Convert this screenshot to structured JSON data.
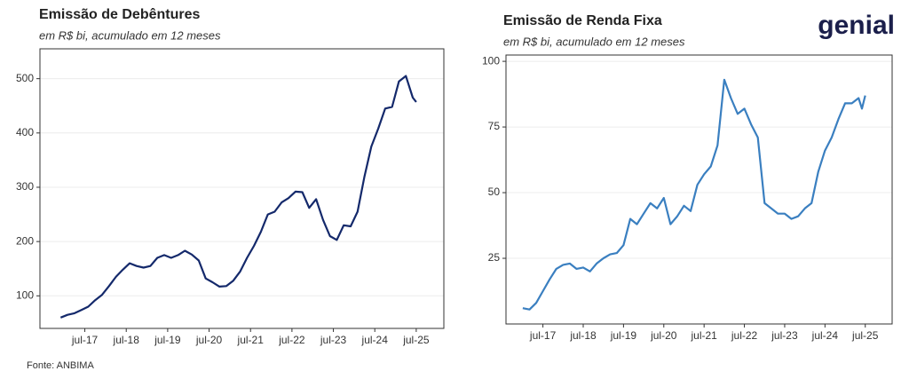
{
  "chart_data": [
    {
      "type": "line",
      "title": "Emissão de Debêntures",
      "subtitle": "em R$ bi, acumulado em 12 meses",
      "color": "#14296b",
      "grid": true,
      "xlim": [
        "2016-06",
        "2026-03"
      ],
      "ylim": [
        40,
        555
      ],
      "xticks": [
        {
          "value": "2017-07",
          "label": "jul-17"
        },
        {
          "value": "2018-07",
          "label": "jul-18"
        },
        {
          "value": "2019-07",
          "label": "jul-19"
        },
        {
          "value": "2020-07",
          "label": "jul-20"
        },
        {
          "value": "2021-07",
          "label": "jul-21"
        },
        {
          "value": "2022-07",
          "label": "jul-22"
        },
        {
          "value": "2023-07",
          "label": "jul-23"
        },
        {
          "value": "2024-07",
          "label": "jul-24"
        },
        {
          "value": "2025-07",
          "label": "jul-25"
        }
      ],
      "yticks": [
        100,
        200,
        300,
        400,
        500
      ],
      "x": [
        "2016-12",
        "2017-02",
        "2017-04",
        "2017-06",
        "2017-08",
        "2017-10",
        "2017-12",
        "2018-02",
        "2018-04",
        "2018-06",
        "2018-08",
        "2018-10",
        "2018-12",
        "2019-02",
        "2019-04",
        "2019-06",
        "2019-08",
        "2019-10",
        "2019-12",
        "2020-02",
        "2020-04",
        "2020-06",
        "2020-08",
        "2020-10",
        "2020-12",
        "2021-02",
        "2021-04",
        "2021-06",
        "2021-08",
        "2021-10",
        "2021-12",
        "2022-02",
        "2022-04",
        "2022-06",
        "2022-08",
        "2022-10",
        "2022-12",
        "2023-02",
        "2023-04",
        "2023-06",
        "2023-08",
        "2023-10",
        "2023-12",
        "2024-02",
        "2024-04",
        "2024-06",
        "2024-08",
        "2024-10",
        "2024-12",
        "2025-02",
        "2025-04",
        "2025-06",
        "2025-07"
      ],
      "values": [
        60,
        65,
        68,
        74,
        80,
        92,
        102,
        118,
        135,
        148,
        160,
        155,
        152,
        155,
        170,
        175,
        170,
        175,
        183,
        176,
        165,
        132,
        125,
        117,
        118,
        128,
        145,
        170,
        192,
        218,
        250,
        255,
        272,
        280,
        292,
        291,
        262,
        278,
        240,
        210,
        203,
        230,
        228,
        255,
        320,
        375,
        408,
        445,
        448,
        495,
        505,
        465,
        457
      ]
    },
    {
      "type": "line",
      "title": "Emissão de Renda Fixa",
      "subtitle": "em R$ bi, acumulado em 12 meses",
      "color": "#3a7fc0",
      "grid": true,
      "xlim": [
        "2016-08",
        "2026-03"
      ],
      "ylim": [
        0,
        102.4
      ],
      "xticks": [
        {
          "value": "2017-07",
          "label": "jul-17"
        },
        {
          "value": "2018-07",
          "label": "jul-18"
        },
        {
          "value": "2019-07",
          "label": "jul-19"
        },
        {
          "value": "2020-07",
          "label": "jul-20"
        },
        {
          "value": "2021-07",
          "label": "jul-21"
        },
        {
          "value": "2022-07",
          "label": "jul-22"
        },
        {
          "value": "2023-07",
          "label": "jul-23"
        },
        {
          "value": "2024-07",
          "label": "jul-24"
        },
        {
          "value": "2025-07",
          "label": "jul-25"
        }
      ],
      "yticks": [
        25,
        50,
        75,
        100
      ],
      "x": [
        "2017-01",
        "2017-03",
        "2017-05",
        "2017-07",
        "2017-09",
        "2017-11",
        "2018-01",
        "2018-03",
        "2018-05",
        "2018-07",
        "2018-09",
        "2018-11",
        "2019-01",
        "2019-03",
        "2019-05",
        "2019-07",
        "2019-09",
        "2019-11",
        "2020-01",
        "2020-03",
        "2020-05",
        "2020-07",
        "2020-09",
        "2020-11",
        "2021-01",
        "2021-03",
        "2021-05",
        "2021-07",
        "2021-09",
        "2021-11",
        "2022-01",
        "2022-03",
        "2022-05",
        "2022-07",
        "2022-09",
        "2022-11",
        "2023-01",
        "2023-03",
        "2023-05",
        "2023-07",
        "2023-09",
        "2023-11",
        "2024-01",
        "2024-03",
        "2024-05",
        "2024-07",
        "2024-09",
        "2024-11",
        "2025-01",
        "2025-03",
        "2025-05",
        "2025-06",
        "2025-07"
      ],
      "values": [
        6,
        5.5,
        8,
        12.5,
        17,
        21,
        22.5,
        23,
        21,
        21.5,
        20,
        23,
        25,
        26.5,
        27,
        30,
        40,
        38,
        42,
        46,
        44,
        48,
        38,
        41,
        45,
        43,
        53,
        57,
        60,
        68,
        93,
        86,
        80,
        82,
        76,
        71,
        46,
        44,
        42,
        42,
        40,
        41,
        44,
        46,
        58,
        66,
        71,
        78,
        84,
        84,
        86,
        82,
        87
      ]
    }
  ],
  "source": "Fonte: ANBIMA",
  "logo": "genial"
}
